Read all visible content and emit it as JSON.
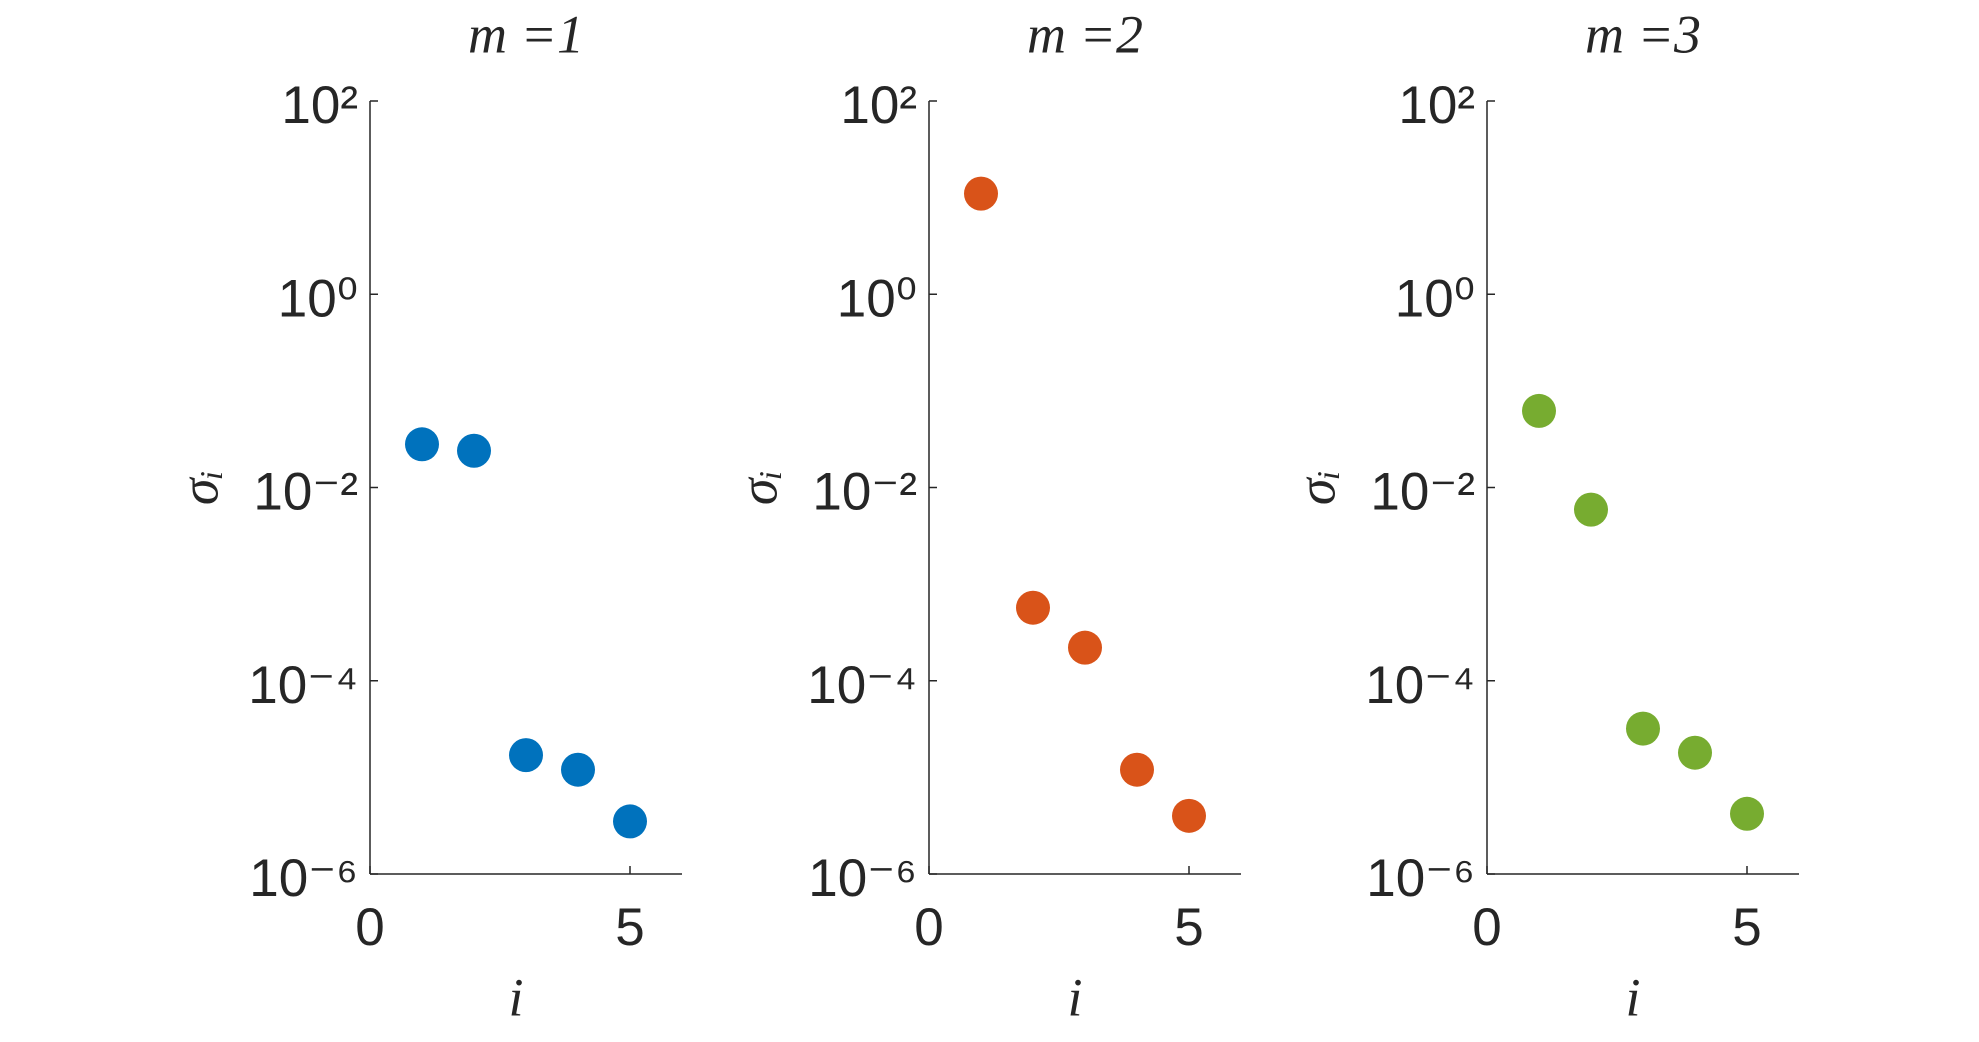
{
  "chart_data": [
    {
      "type": "scatter",
      "title": "m =1",
      "xlabel": "i",
      "ylabel": "σᵢ",
      "color": "#0072bd",
      "log_y": true,
      "x": [
        1,
        2,
        3,
        4,
        5
      ],
      "values": [
        0.028,
        0.024,
        1.7e-05,
        1.2e-05,
        3.5e-06
      ],
      "xlim": [
        0,
        6
      ],
      "xticks": [
        0,
        5
      ],
      "ylim": [
        1e-06,
        100
      ],
      "yticks": [
        {
          "value": 100,
          "label": "10²"
        },
        {
          "value": 1,
          "label": "10⁰"
        },
        {
          "value": 0.01,
          "label": "10⁻²"
        },
        {
          "value": 0.0001,
          "label": "10⁻⁴"
        },
        {
          "value": 1e-06,
          "label": "10⁻⁶"
        }
      ]
    },
    {
      "type": "scatter",
      "title": "m =2",
      "xlabel": "i",
      "ylabel": "σᵢ",
      "color": "#d95319",
      "log_y": true,
      "x": [
        1,
        2,
        3,
        4,
        5
      ],
      "values": [
        11,
        0.00057,
        0.00022,
        1.2e-05,
        4e-06
      ],
      "xlim": [
        0,
        6
      ],
      "xticks": [
        0,
        5
      ],
      "ylim": [
        1e-06,
        100
      ],
      "yticks": [
        {
          "value": 100,
          "label": "10²"
        },
        {
          "value": 1,
          "label": "10⁰"
        },
        {
          "value": 0.01,
          "label": "10⁻²"
        },
        {
          "value": 0.0001,
          "label": "10⁻⁴"
        },
        {
          "value": 1e-06,
          "label": "10⁻⁶"
        }
      ]
    },
    {
      "type": "scatter",
      "title": "m =3",
      "xlabel": "i",
      "ylabel": "σᵢ",
      "color": "#77ac30",
      "log_y": true,
      "x": [
        1,
        2,
        3,
        4,
        5
      ],
      "values": [
        0.062,
        0.0059,
        3.2e-05,
        1.8e-05,
        4.2e-06
      ],
      "xlim": [
        0,
        6
      ],
      "xticks": [
        0,
        5
      ],
      "ylim": [
        1e-06,
        100
      ],
      "yticks": [
        {
          "value": 100,
          "label": "10²"
        },
        {
          "value": 1,
          "label": "10⁰"
        },
        {
          "value": 0.01,
          "label": "10⁻²"
        },
        {
          "value": 0.0001,
          "label": "10⁻⁴"
        },
        {
          "value": 1e-06,
          "label": "10⁻⁶"
        }
      ]
    }
  ]
}
